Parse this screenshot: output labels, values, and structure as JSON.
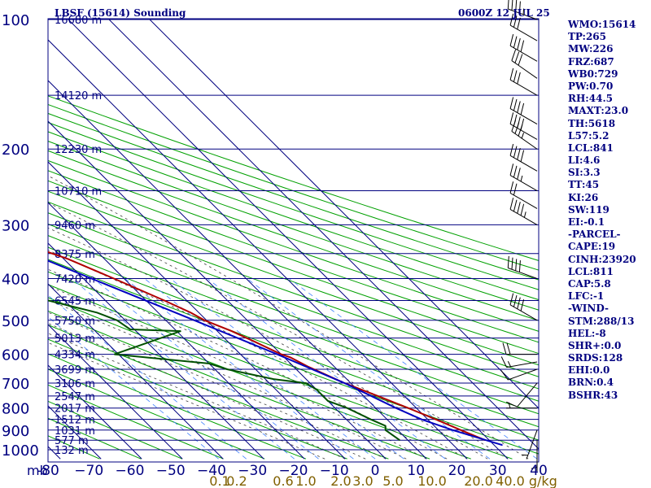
{
  "chart_data": {
    "type": "skew-t log-p sounding",
    "title": "LBSF (15614) Sounding",
    "valid_time": "0600Z 12 JUL 25",
    "pressure_axis": {
      "unit_label": "mb",
      "levels": [
        100,
        200,
        300,
        400,
        500,
        600,
        700,
        800,
        900,
        1000
      ],
      "range": [
        100,
        1050
      ]
    },
    "temperature_axis": {
      "ticks": [
        -80,
        -70,
        -60,
        -50,
        -40,
        -30,
        -20,
        -10,
        0,
        10,
        20,
        30,
        40
      ],
      "tick_labels": [
        "-80",
        "−70",
        "−60",
        "−50",
        "−40",
        "−30",
        "−20",
        "−10",
        "0",
        "10",
        "20",
        "30",
        "40"
      ],
      "skewed": true
    },
    "height_labels": [
      {
        "p": 100,
        "label": "16680 m"
      },
      {
        "p": 150,
        "label": "14120 m"
      },
      {
        "p": 200,
        "label": "12230 m"
      },
      {
        "p": 250,
        "label": "10710 m"
      },
      {
        "p": 300,
        "label": "9460 m"
      },
      {
        "p": 350,
        "label": "8375 m"
      },
      {
        "p": 400,
        "label": "7420 m"
      },
      {
        "p": 450,
        "label": "6545 m"
      },
      {
        "p": 500,
        "label": "5750 m"
      },
      {
        "p": 550,
        "label": "5013 m"
      },
      {
        "p": 600,
        "label": "4334 m"
      },
      {
        "p": 650,
        "label": "3699 m"
      },
      {
        "p": 700,
        "label": "3106 m"
      },
      {
        "p": 750,
        "label": "2547 m"
      },
      {
        "p": 800,
        "label": "2017 m"
      },
      {
        "p": 850,
        "label": "1512 m"
      },
      {
        "p": 900,
        "label": "1031 m"
      },
      {
        "p": 950,
        "label": "577 m"
      },
      {
        "p": 1000,
        "label": "132 m"
      }
    ],
    "mixing_ratio_labels": [
      "0.1",
      "0.2",
      "0.6",
      "1.0",
      "2.0",
      "3.0",
      "5.0",
      "10.0",
      "20.0",
      "40.0"
    ],
    "mixing_ratio_unit": "g/kg",
    "mixing_ratio_axis_label": "40.0 g/kg",
    "series": [
      {
        "color": "#b00000",
        "points": [
          {
            "p": 100,
            "t": -71
          },
          {
            "p": 125,
            "t": -64.5
          },
          {
            "p": 150,
            "t": -63
          },
          {
            "p": 175,
            "t": -59.5
          },
          {
            "p": 200,
            "t": -55.5
          },
          {
            "p": 225,
            "t": -51.5
          },
          {
            "p": 236,
            "t": -48
          },
          {
            "p": 250,
            "t": -51.5
          },
          {
            "p": 260,
            "t": -51
          },
          {
            "p": 300,
            "t": -42
          },
          {
            "p": 340,
            "t": -34
          },
          {
            "p": 360,
            "t": -29
          },
          {
            "p": 400,
            "t": -22.5
          },
          {
            "p": 450,
            "t": -15.5
          },
          {
            "p": 480,
            "t": -12
          },
          {
            "p": 500,
            "t": -10.5
          },
          {
            "p": 530,
            "t": -6.5
          },
          {
            "p": 560,
            "t": -3.5
          },
          {
            "p": 600,
            "t": 0
          },
          {
            "p": 610,
            "t": 1.5
          },
          {
            "p": 640,
            "t": 3.5
          },
          {
            "p": 700,
            "t": 8.5
          },
          {
            "p": 750,
            "t": 13.5
          },
          {
            "p": 800,
            "t": 18
          },
          {
            "p": 850,
            "t": 22
          },
          {
            "p": 900,
            "t": 25.5
          },
          {
            "p": 950,
            "t": 29
          }
        ]
      },
      {
        "color": "#005000",
        "points": [
          {
            "p": 175,
            "t": -93
          },
          {
            "p": 200,
            "t": -88
          },
          {
            "p": 225,
            "t": -83
          },
          {
            "p": 250,
            "t": -80
          },
          {
            "p": 300,
            "t": -67
          },
          {
            "p": 350,
            "t": -53
          },
          {
            "p": 375,
            "t": -52.5
          },
          {
            "p": 400,
            "t": -52.5
          },
          {
            "p": 450,
            "t": -44
          },
          {
            "p": 480,
            "t": -35
          },
          {
            "p": 500,
            "t": -32
          },
          {
            "p": 525,
            "t": -31
          },
          {
            "p": 530,
            "t": -19
          },
          {
            "p": 570,
            "t": -32
          },
          {
            "p": 600,
            "t": -41
          },
          {
            "p": 630,
            "t": -20
          },
          {
            "p": 650,
            "t": -17
          },
          {
            "p": 685,
            "t": -8
          },
          {
            "p": 700,
            "t": -1
          },
          {
            "p": 725,
            "t": 0
          },
          {
            "p": 770,
            "t": 0
          },
          {
            "p": 800,
            "t": 3
          },
          {
            "p": 850,
            "t": 6
          },
          {
            "p": 880,
            "t": 8
          },
          {
            "p": 900,
            "t": 7
          },
          {
            "p": 950,
            "t": 8
          }
        ]
      },
      {
        "color": "#0000c0",
        "points": [
          {
            "p": 975,
            "t": 32
          },
          {
            "p": 900,
            "t": 23.5
          },
          {
            "p": 850,
            "t": 18.5
          },
          {
            "p": 800,
            "t": 15
          },
          {
            "p": 700,
            "t": 8.5
          },
          {
            "p": 600,
            "t": -1
          },
          {
            "p": 500,
            "t": -13
          },
          {
            "p": 400,
            "t": -28
          },
          {
            "p": 300,
            "t": -47
          },
          {
            "p": 250,
            "t": -58
          },
          {
            "p": 200,
            "t": -70
          },
          {
            "p": 175,
            "t": -76
          }
        ]
      }
    ],
    "wind_barbs": [
      {
        "p": 100,
        "dir": 290,
        "kt": 45
      },
      {
        "p": 112,
        "dir": 300,
        "kt": 30
      },
      {
        "p": 125,
        "dir": 300,
        "kt": 40
      },
      {
        "p": 137,
        "dir": 305,
        "kt": 30
      },
      {
        "p": 150,
        "dir": 300,
        "kt": 30
      },
      {
        "p": 175,
        "dir": 300,
        "kt": 40
      },
      {
        "p": 190,
        "dir": 300,
        "kt": 40
      },
      {
        "p": 200,
        "dir": 305,
        "kt": 35
      },
      {
        "p": 225,
        "dir": 300,
        "kt": 40
      },
      {
        "p": 250,
        "dir": 300,
        "kt": 35
      },
      {
        "p": 275,
        "dir": 300,
        "kt": 20
      },
      {
        "p": 300,
        "dir": 300,
        "kt": 45
      },
      {
        "p": 400,
        "dir": 290,
        "kt": 40
      },
      {
        "p": 500,
        "dir": 300,
        "kt": 40
      },
      {
        "p": 600,
        "dir": 270,
        "kt": 20
      },
      {
        "p": 625,
        "dir": 260,
        "kt": 15
      },
      {
        "p": 650,
        "dir": 250,
        "kt": 10
      },
      {
        "p": 700,
        "dir": 220,
        "kt": 10
      },
      {
        "p": 800,
        "dir": 270,
        "kt": 5
      },
      {
        "p": 900,
        "dir": 200,
        "kt": 5
      },
      {
        "p": 950,
        "dir": 180,
        "kt": 5
      }
    ],
    "indices": [
      "WMO:15614",
      "TP:265",
      "MW:226",
      "FRZ:687",
      "WB0:729",
      "PW:0.70",
      "RH:44.5",
      "MAXT:23.0",
      "TH:5618",
      "L57:5.2",
      "LCL:841",
      "LI:4.6",
      "SI:3.3",
      "TT:45",
      "KI:26",
      "SW:119",
      "EI:-0.1",
      "-PARCEL-",
      "CAPE:19",
      "CINH:23920",
      "LCL:811",
      "CAP:5.8",
      "LFC:-1",
      "-WIND-",
      "STM:288/13",
      "HEL:-8",
      "SHR+:0.0",
      "SRDS:128",
      "EHI:0.0",
      "BRN:0.4",
      "BSHR:43"
    ],
    "colors": {
      "isobar_isotherm_grid": "#000080",
      "dry_adiabats": "#00a000",
      "moist_adiabats": "#404040",
      "mixing_ratio": "#4080ff",
      "temperature": "#b00000",
      "dewpoint": "#005000",
      "parcel": "#0000c0",
      "labels": "#000080",
      "mixing_ratio_labels": "#806000"
    }
  }
}
